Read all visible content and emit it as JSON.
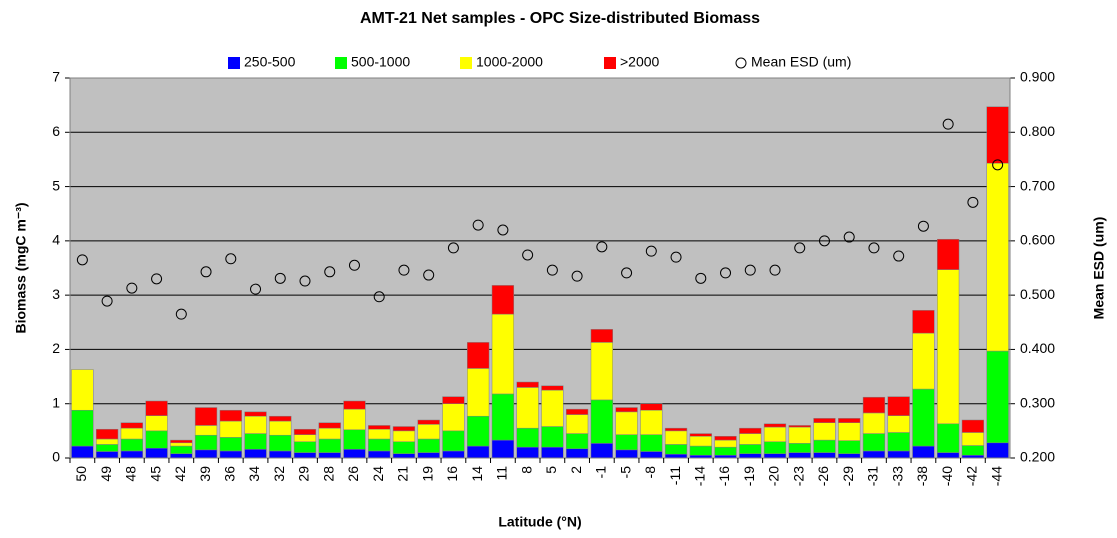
{
  "chart_data": {
    "type": "bar",
    "stacked": true,
    "title": "AMT-21 Net samples - OPC Size-distributed Biomass",
    "xlabel": "Latitude (°N)",
    "ylabel": "Biomass (mgC m⁻³)",
    "y2label": "Mean ESD (um)",
    "categories": [
      "50",
      "49",
      "48",
      "45",
      "42",
      "39",
      "36",
      "34",
      "32",
      "29",
      "28",
      "26",
      "24",
      "21",
      "19",
      "16",
      "14",
      "11",
      "8",
      "5",
      "2",
      "-1",
      "-5",
      "-8",
      "-11",
      "-14",
      "-16",
      "-19",
      "-20",
      "-23",
      "-26",
      "-29",
      "-31",
      "-33",
      "-38",
      "-40",
      "-42",
      "-44"
    ],
    "series": [
      {
        "name": "250-500",
        "color": "#0000ff",
        "values": [
          0.22,
          0.12,
          0.13,
          0.18,
          0.08,
          0.15,
          0.13,
          0.16,
          0.13,
          0.1,
          0.1,
          0.16,
          0.13,
          0.08,
          0.1,
          0.13,
          0.22,
          0.33,
          0.2,
          0.2,
          0.17,
          0.27,
          0.15,
          0.12,
          0.07,
          0.05,
          0.05,
          0.08,
          0.08,
          0.1,
          0.1,
          0.08,
          0.13,
          0.13,
          0.22,
          0.1,
          0.05,
          0.28
        ]
      },
      {
        "name": "500-1000",
        "color": "#00ff00",
        "values": [
          0.66,
          0.13,
          0.22,
          0.32,
          0.14,
          0.27,
          0.25,
          0.29,
          0.29,
          0.2,
          0.25,
          0.36,
          0.22,
          0.22,
          0.25,
          0.37,
          0.55,
          0.85,
          0.35,
          0.38,
          0.28,
          0.8,
          0.28,
          0.31,
          0.18,
          0.17,
          0.15,
          0.17,
          0.22,
          0.17,
          0.23,
          0.24,
          0.32,
          0.34,
          1.05,
          0.53,
          0.18,
          1.69
        ]
      },
      {
        "name": "1000-2000",
        "color": "#ffff00",
        "values": [
          0.75,
          0.1,
          0.2,
          0.28,
          0.06,
          0.18,
          0.3,
          0.32,
          0.26,
          0.13,
          0.2,
          0.38,
          0.18,
          0.2,
          0.27,
          0.5,
          0.88,
          1.47,
          0.75,
          0.67,
          0.35,
          1.06,
          0.42,
          0.45,
          0.25,
          0.18,
          0.13,
          0.2,
          0.27,
          0.3,
          0.32,
          0.33,
          0.38,
          0.31,
          1.03,
          2.84,
          0.24,
          3.46
        ]
      },
      {
        "name": ">2000",
        "color": "#ff0000",
        "values": [
          0,
          0.18,
          0.1,
          0.27,
          0.05,
          0.33,
          0.2,
          0.08,
          0.09,
          0.1,
          0.1,
          0.15,
          0.07,
          0.08,
          0.08,
          0.13,
          0.48,
          0.53,
          0.1,
          0.08,
          0.1,
          0.24,
          0.08,
          0.12,
          0.05,
          0.05,
          0.07,
          0.1,
          0.06,
          0.03,
          0.08,
          0.08,
          0.29,
          0.35,
          0.42,
          0.56,
          0.23,
          1.04
        ]
      },
      {
        "name": "Mean ESD (um)",
        "type": "scatter",
        "axis": "y2",
        "color": "#000000",
        "values": [
          0.565,
          0.489,
          0.513,
          0.53,
          0.465,
          0.543,
          0.567,
          0.511,
          0.531,
          0.526,
          0.543,
          0.555,
          0.497,
          0.546,
          0.537,
          0.587,
          0.629,
          0.62,
          0.574,
          0.546,
          0.535,
          0.589,
          0.541,
          0.581,
          0.57,
          0.531,
          0.541,
          0.546,
          0.546,
          0.587,
          0.6,
          0.607,
          0.587,
          0.572,
          0.627,
          0.815,
          0.671,
          0.74
        ]
      }
    ],
    "ylim": [
      0,
      7
    ],
    "yticks": [
      0,
      1,
      2,
      3,
      4,
      5,
      6,
      7
    ],
    "y2lim": [
      0.2,
      0.9
    ],
    "y2ticks": [
      {
        "value": 0.2,
        "label": "0.200"
      },
      {
        "value": 0.3,
        "label": "0.300"
      },
      {
        "value": 0.4,
        "label": "0.400"
      },
      {
        "value": 0.5,
        "label": "0.500"
      },
      {
        "value": 0.6,
        "label": "0.600"
      },
      {
        "value": 0.7,
        "label": "0.700"
      },
      {
        "value": 0.8,
        "label": "0.800"
      },
      {
        "value": 0.9,
        "label": "0.900"
      }
    ],
    "grid": true,
    "legend": "top"
  }
}
